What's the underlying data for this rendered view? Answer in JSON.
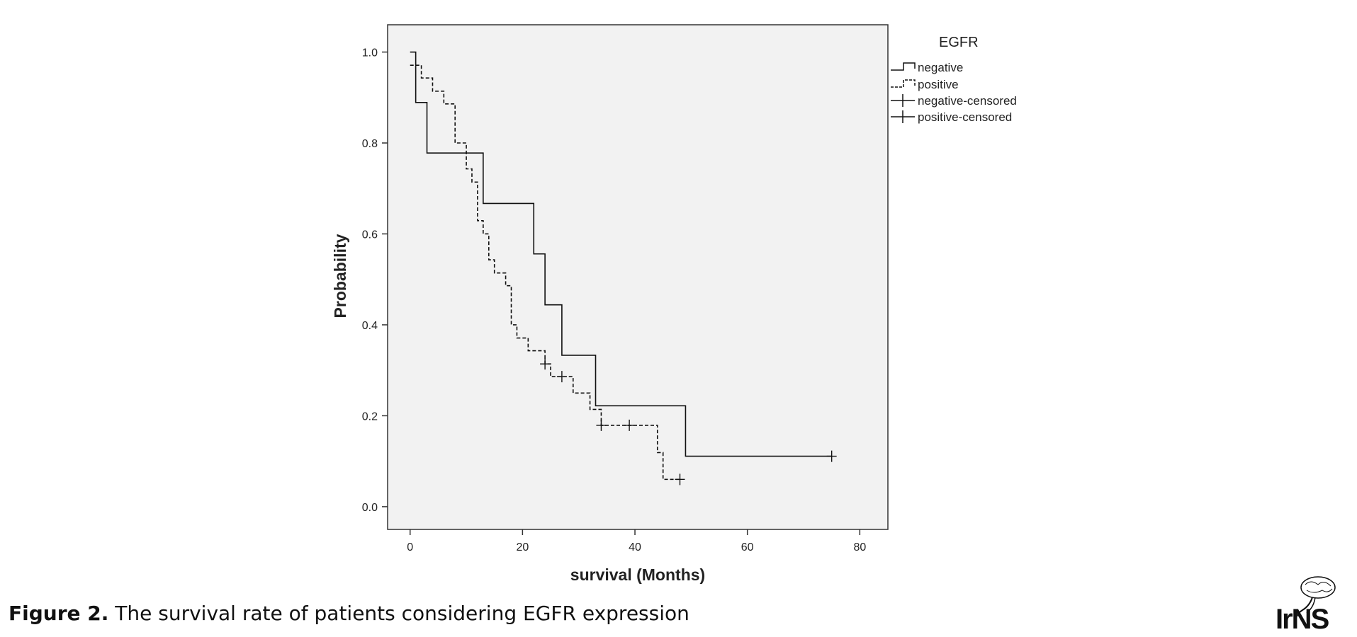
{
  "chart_data": {
    "type": "line",
    "subtype": "kaplan-meier-step",
    "title": "",
    "xlabel": "survival (Months)",
    "ylabel": "Probability",
    "xlim": [
      -4,
      85
    ],
    "ylim": [
      -0.05,
      1.06
    ],
    "xticks": [
      0,
      20,
      40,
      60,
      80
    ],
    "yticks": [
      0.0,
      0.2,
      0.4,
      0.6,
      0.8,
      1.0
    ],
    "ytick_labels": [
      "0.0",
      "0.2",
      "0.4",
      "0.6",
      "0.8",
      "1.0"
    ],
    "grid": false,
    "plot_background": "#f2f2f2",
    "legend": {
      "title": "EGFR",
      "position": "right",
      "entries": [
        "negative",
        "positive",
        "negative-censored",
        "positive-censored"
      ]
    },
    "series": [
      {
        "name": "negative",
        "style": "solid",
        "steps": [
          [
            0,
            1.0
          ],
          [
            1,
            0.889
          ],
          [
            3,
            0.778
          ],
          [
            13,
            0.667
          ],
          [
            22,
            0.556
          ],
          [
            24,
            0.444
          ],
          [
            27,
            0.333
          ],
          [
            33,
            0.222
          ],
          [
            49,
            0.111
          ],
          [
            75,
            0.111
          ]
        ],
        "censored": [
          [
            75,
            0.111
          ]
        ]
      },
      {
        "name": "positive",
        "style": "dashed",
        "steps": [
          [
            0,
            0.971
          ],
          [
            2,
            0.943
          ],
          [
            4,
            0.914
          ],
          [
            6,
            0.886
          ],
          [
            8,
            0.8
          ],
          [
            10,
            0.743
          ],
          [
            11,
            0.714
          ],
          [
            12,
            0.629
          ],
          [
            13,
            0.6
          ],
          [
            14,
            0.543
          ],
          [
            15,
            0.514
          ],
          [
            17,
            0.486
          ],
          [
            18,
            0.4
          ],
          [
            19,
            0.371
          ],
          [
            21,
            0.343
          ],
          [
            24,
            0.314
          ],
          [
            25,
            0.286
          ],
          [
            29,
            0.25
          ],
          [
            32,
            0.214
          ],
          [
            34,
            0.179
          ],
          [
            44,
            0.119
          ],
          [
            45,
            0.06
          ],
          [
            48,
            0.06
          ]
        ],
        "censored": [
          [
            24,
            0.314
          ],
          [
            27,
            0.286
          ],
          [
            34,
            0.179
          ],
          [
            39,
            0.179
          ],
          [
            48,
            0.06
          ]
        ]
      }
    ]
  },
  "caption": {
    "label": "Figure 2.",
    "text": " The survival rate of patients considering EGFR expression"
  },
  "logo": {
    "text": "IrNS",
    "icon": "brain-logo-icon"
  }
}
